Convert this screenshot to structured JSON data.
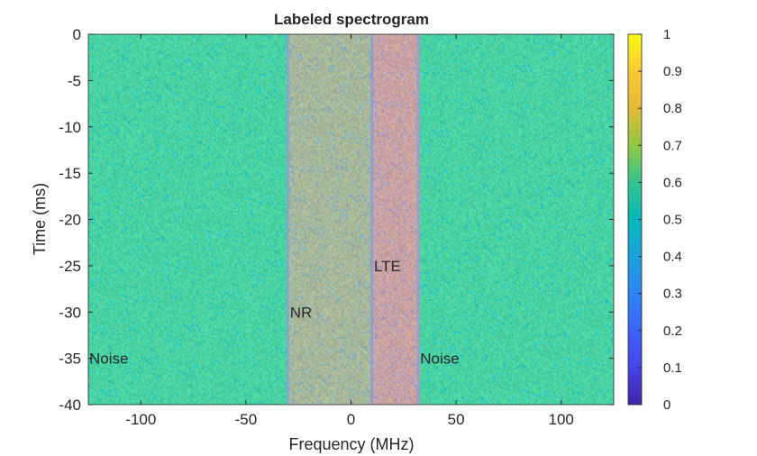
{
  "chart_data": {
    "type": "heatmap",
    "title": "Labeled spectrogram",
    "xlabel": "Frequency (MHz)",
    "ylabel": "Time (ms)",
    "xlim": [
      -125,
      125
    ],
    "ylim": [
      -40,
      0
    ],
    "xticks": [
      -100,
      -50,
      0,
      50,
      100
    ],
    "xtick_labels": [
      "-100",
      "-50",
      "0",
      "50",
      "100"
    ],
    "yticks": [
      0,
      -5,
      -10,
      -15,
      -20,
      -25,
      -30,
      -35,
      -40
    ],
    "ytick_labels": [
      "0",
      "-5",
      "-10",
      "-15",
      "-20",
      "-25",
      "-30",
      "-35",
      "-40"
    ],
    "colorbar": {
      "colormap": "parula",
      "range": [
        0,
        1
      ],
      "ticks": [
        0,
        0.1,
        0.2,
        0.3,
        0.4,
        0.5,
        0.6,
        0.7,
        0.8,
        0.9,
        1
      ],
      "tick_labels": [
        "0",
        "0.1",
        "0.2",
        "0.3",
        "0.4",
        "0.5",
        "0.6",
        "0.7",
        "0.8",
        "0.9",
        "1"
      ]
    },
    "regions": [
      {
        "label": "Noise",
        "freq_range": [
          -125,
          -30
        ],
        "color": "#4cd3a2"
      },
      {
        "label": "NR",
        "freq_range": [
          -30,
          10
        ],
        "color": "#a8b89c"
      },
      {
        "label": "LTE",
        "freq_range": [
          10,
          32
        ],
        "color": "#c9a3a3"
      },
      {
        "label": "Noise",
        "freq_range": [
          32,
          125
        ],
        "color": "#4cd3a2"
      }
    ],
    "annotations": [
      {
        "text": "Noise",
        "x": -125,
        "y": -35
      },
      {
        "text": "NR",
        "x": -29.5,
        "y": -30
      },
      {
        "text": "LTE",
        "x": 10.5,
        "y": -25
      },
      {
        "text": "Noise",
        "x": 32.5,
        "y": -35
      }
    ],
    "grid": false
  }
}
